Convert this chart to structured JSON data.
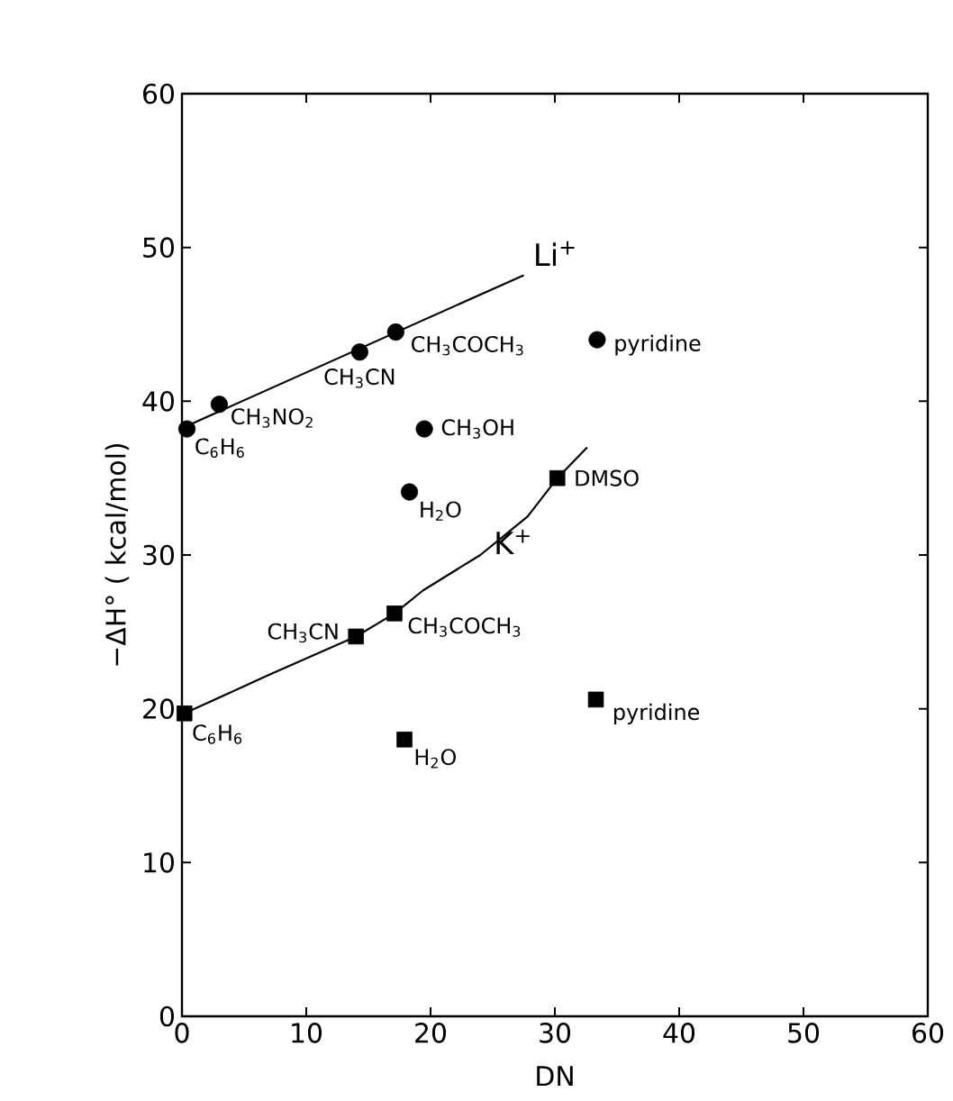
{
  "chart_data": {
    "type": "scatter",
    "xlabel": "DN",
    "ylabel": "−ΔH° ( kcal/mol)",
    "xlim": [
      0,
      60
    ],
    "ylim": [
      0,
      60
    ],
    "xticks": [
      0,
      10,
      20,
      30,
      40,
      50,
      60
    ],
    "yticks": [
      0,
      10,
      20,
      30,
      40,
      50,
      60
    ],
    "grid": false,
    "series": [
      {
        "marker": "circle",
        "color": "#000000",
        "x": [
          0.4,
          3.0,
          14.3,
          17.2,
          33.4,
          19.5,
          18.3
        ],
        "values": [
          38.2,
          39.8,
          43.2,
          44.5,
          44.0,
          38.2,
          34.1
        ]
      },
      {
        "marker": "square",
        "color": "#000000",
        "x": [
          0.2,
          14.0,
          17.1,
          30.2,
          17.9,
          33.3
        ],
        "values": [
          19.7,
          24.7,
          26.2,
          35.0,
          18.0,
          20.6
        ]
      },
      {
        "type": "line",
        "marker": "none",
        "color": "#000000",
        "x": [
          0.4,
          27.5
        ],
        "values": [
          38.4,
          48.2
        ]
      },
      {
        "type": "line",
        "marker": "none",
        "color": "#000000",
        "x": [
          0.2,
          7.0,
          14.0,
          17.1,
          19.4,
          24.0,
          27.8,
          30.2,
          32.6
        ],
        "values": [
          19.7,
          22.2,
          24.7,
          26.2,
          27.7,
          30.0,
          32.5,
          35.0,
          37.0
        ]
      }
    ],
    "annotations": [
      {
        "text": "C$_{6}$H$_{6}$",
        "x": 0.4,
        "y": 38.2
      },
      {
        "text": "CH$_{3}$NO$_{2}$",
        "x": 3.0,
        "y": 39.8
      },
      {
        "text": "CH$_{3}$CN",
        "x": 14.3,
        "y": 43.2
      },
      {
        "text": "CH$_{3}$COCH$_{3}$",
        "x": 17.2,
        "y": 44.5
      },
      {
        "text": "pyridine",
        "x": 33.4,
        "y": 44.0
      },
      {
        "text": "CH$_{3}$OH",
        "x": 19.5,
        "y": 38.2
      },
      {
        "text": "H$_{2}$O",
        "x": 18.3,
        "y": 34.1
      },
      {
        "text": "DMSO",
        "x": 30.2,
        "y": 35.0
      },
      {
        "text": "Li$^{+}$",
        "x": 27.5,
        "y": 48.2
      },
      {
        "text": "K$^{+}$",
        "x": 27.8,
        "y": 32.5
      },
      {
        "text": "CH$_{3}$CN",
        "x": 14.0,
        "y": 24.7
      },
      {
        "text": "CH$_{3}$COCH$_{3}$",
        "x": 17.1,
        "y": 26.2
      },
      {
        "text": "C$_{6}$H$_{6}$",
        "x": 0.2,
        "y": 19.7
      },
      {
        "text": "H$_{2}$O",
        "x": 17.9,
        "y": 18.0
      },
      {
        "text": "pyridine",
        "x": 33.3,
        "y": 20.6
      }
    ]
  }
}
